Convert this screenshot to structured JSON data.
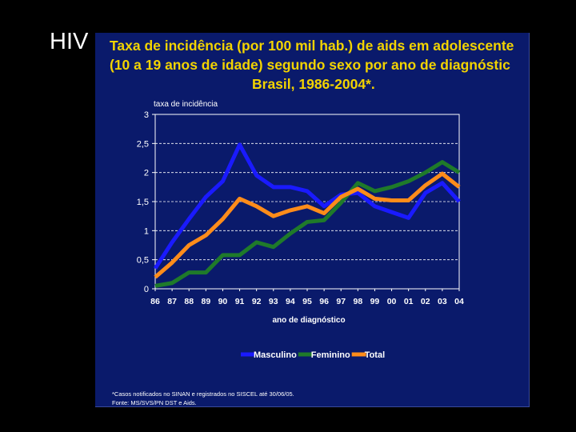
{
  "slide": {
    "title": "HIV"
  },
  "chart_data": {
    "type": "line",
    "title_lines": [
      "Taxa de incidência (por 100 mil hab.) de aids em adolescente",
      "(10 a 19 anos de idade) segundo sexo por ano de diagnóstic",
      "Brasil, 1986-2004*."
    ],
    "ylabel": "taxa de incidência",
    "xlabel": "ano de diagnóstico",
    "ylim": [
      0,
      3
    ],
    "yticks": [
      0,
      0.5,
      1,
      1.5,
      2,
      2.5,
      3
    ],
    "ytick_labels": [
      "0",
      "0,5",
      "1",
      "1,5",
      "2",
      "2,5",
      "3"
    ],
    "categories": [
      "86",
      "87",
      "88",
      "89",
      "90",
      "91",
      "92",
      "93",
      "94",
      "95",
      "96",
      "97",
      "98",
      "99",
      "00",
      "01",
      "02",
      "03",
      "04"
    ],
    "grid": "horizontal-dashed",
    "legend_position": "bottom",
    "series": [
      {
        "name": "Masculino",
        "color": "#1a1aff",
        "values": [
          0.35,
          0.8,
          1.2,
          1.58,
          1.85,
          2.48,
          1.95,
          1.75,
          1.75,
          1.68,
          1.42,
          1.62,
          1.65,
          1.42,
          1.32,
          1.22,
          1.65,
          1.82,
          1.5
        ]
      },
      {
        "name": "Feminino",
        "color": "#1f7a2a",
        "values": [
          0.05,
          0.1,
          0.28,
          0.28,
          0.58,
          0.58,
          0.8,
          0.72,
          0.95,
          1.15,
          1.18,
          1.48,
          1.82,
          1.68,
          1.75,
          1.85,
          2.0,
          2.18,
          2.0
        ]
      },
      {
        "name": "Total",
        "color": "#ff8c1a",
        "values": [
          0.2,
          0.45,
          0.75,
          0.92,
          1.2,
          1.55,
          1.42,
          1.25,
          1.35,
          1.42,
          1.3,
          1.58,
          1.72,
          1.55,
          1.52,
          1.52,
          1.78,
          1.98,
          1.75
        ]
      }
    ]
  },
  "footnote": {
    "line1": "*Casos notificados no SINAN e registrados no SISCEL até 30/06/05.",
    "line2": "Fonte: MS/SVS/PN DST e Aids."
  }
}
